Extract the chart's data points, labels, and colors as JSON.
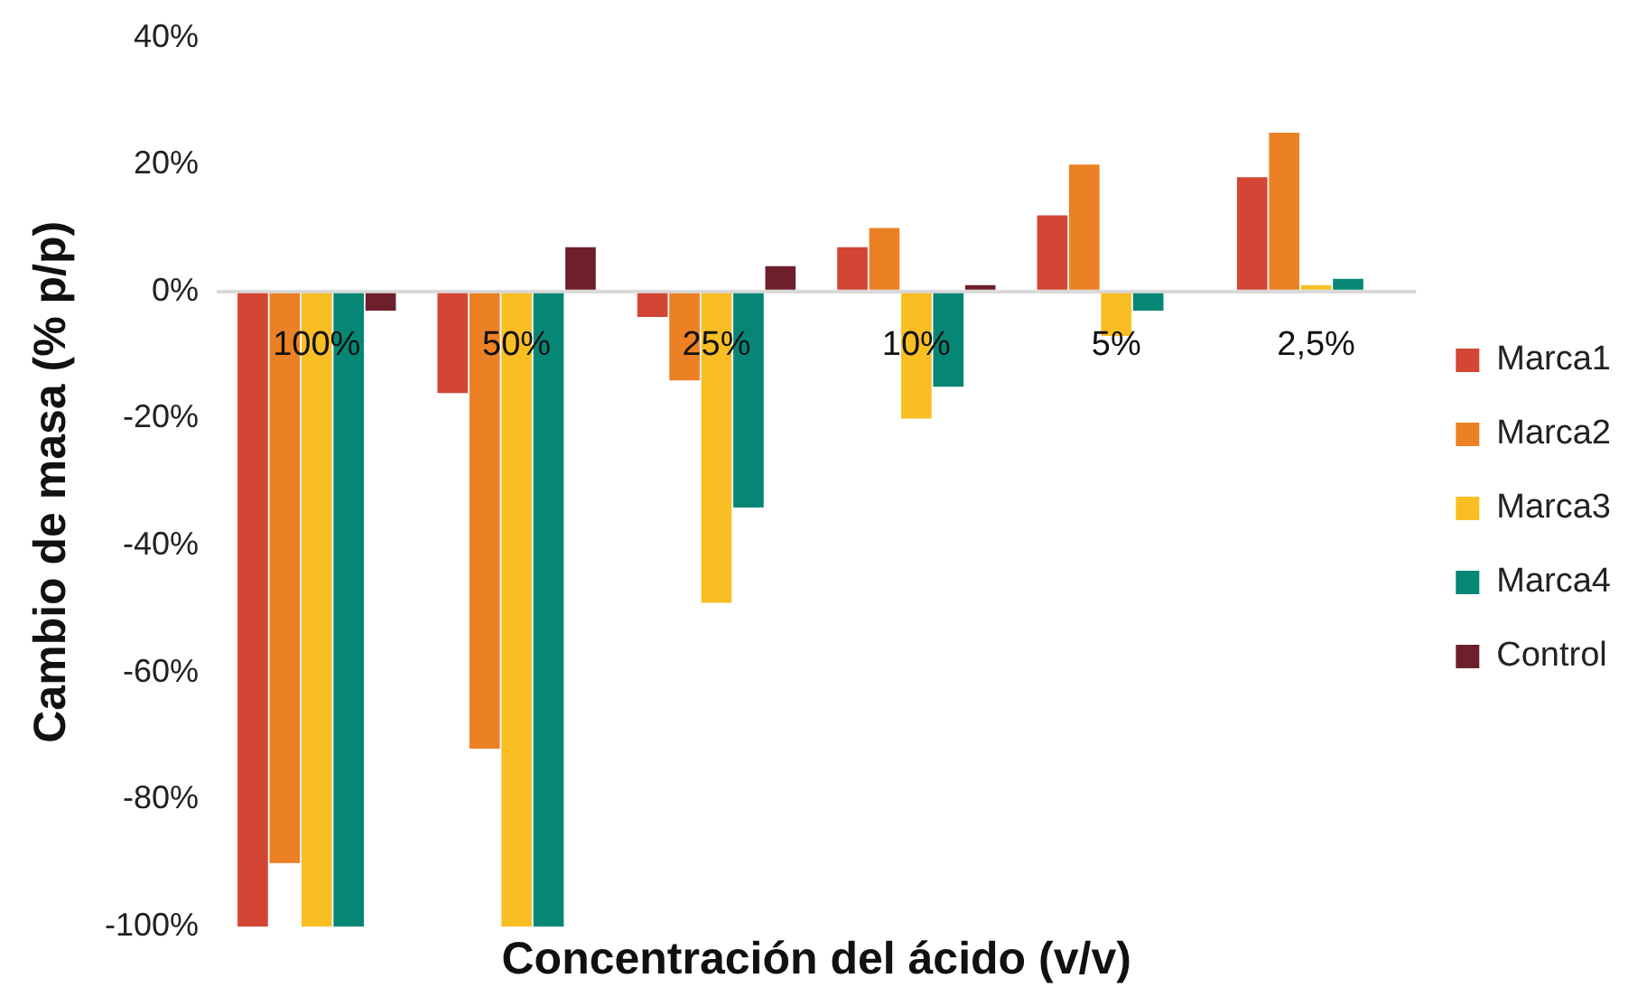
{
  "chart_data": {
    "type": "bar",
    "xlabel": "Concentración del ácido (v/v)",
    "ylabel": "Cambio de masa (% p/p)",
    "categories": [
      "100%",
      "50%",
      "25%",
      "10%",
      "5%",
      "2,5%"
    ],
    "series": [
      {
        "name": "Marca1",
        "color": "#d34534",
        "values": [
          -100,
          -16,
          -4,
          7,
          12,
          18
        ]
      },
      {
        "name": "Marca2",
        "color": "#ec8024",
        "values": [
          -90,
          -72,
          -14,
          10,
          20,
          25
        ]
      },
      {
        "name": "Marca3",
        "color": "#f9be24",
        "values": [
          -100,
          -100,
          -49,
          -20,
          -7,
          1
        ]
      },
      {
        "name": "Marca4",
        "color": "#068776",
        "values": [
          -100,
          -100,
          -34,
          -15,
          -3,
          2
        ]
      },
      {
        "name": "Control",
        "color": "#6d1f2c",
        "values": [
          -3,
          7,
          4,
          1,
          null,
          null
        ]
      }
    ],
    "ylim": [
      -100,
      40
    ],
    "yticks": [
      {
        "value": -100,
        "label": "-100%"
      },
      {
        "value": -80,
        "label": "-80%"
      },
      {
        "value": -60,
        "label": "-60%"
      },
      {
        "value": -40,
        "label": "-40%"
      },
      {
        "value": -20,
        "label": "-20%"
      },
      {
        "value": 0,
        "label": "0%"
      },
      {
        "value": 20,
        "label": "20%"
      },
      {
        "value": 40,
        "label": "40%"
      }
    ],
    "grid": false,
    "legend": "right"
  }
}
